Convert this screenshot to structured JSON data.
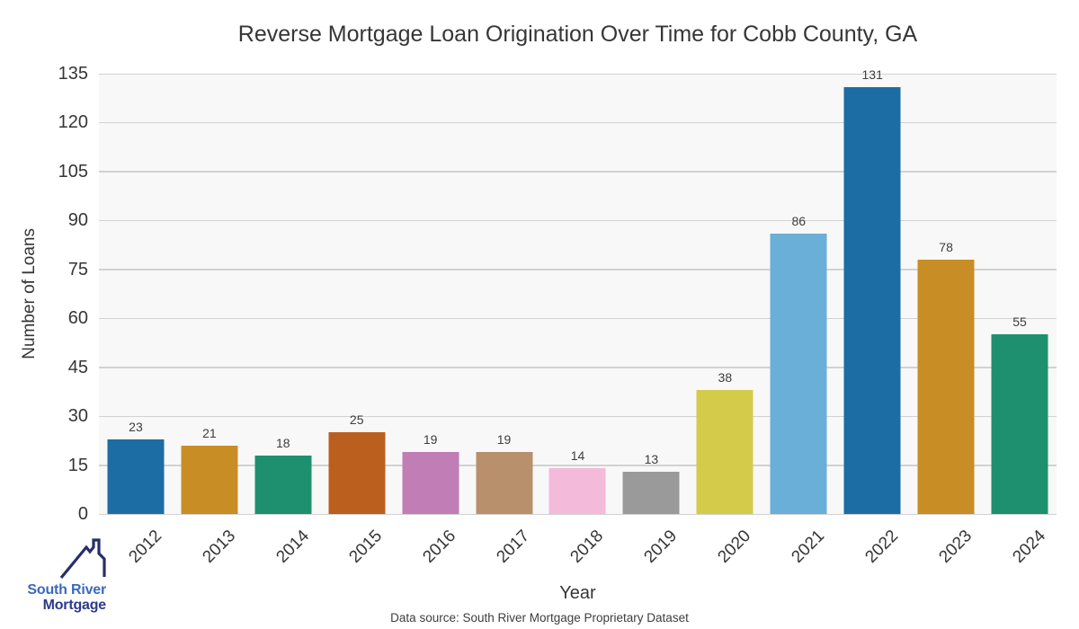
{
  "chart_data": {
    "type": "bar",
    "title": "Reverse Mortgage Loan Origination Over Time for Cobb County, GA",
    "xlabel": "Year",
    "ylabel": "Number of Loans",
    "categories": [
      "2012",
      "2013",
      "2014",
      "2015",
      "2016",
      "2017",
      "2018",
      "2019",
      "2020",
      "2021",
      "2022",
      "2023",
      "2024"
    ],
    "values": [
      23,
      21,
      18,
      25,
      19,
      19,
      14,
      13,
      38,
      86,
      131,
      78,
      55
    ],
    "bar_colors": [
      "#1c6da4",
      "#c88e25",
      "#1e9070",
      "#bb5f1e",
      "#c07db6",
      "#b8906c",
      "#f3bada",
      "#9a9a9a",
      "#d4cb4b",
      "#69afd7",
      "#1c6da4",
      "#c88e25",
      "#1e9070"
    ],
    "ylim": [
      0,
      135
    ],
    "yticks": [
      0,
      15,
      30,
      45,
      60,
      75,
      90,
      105,
      120,
      135
    ],
    "grid": "horizontal",
    "legend": "none",
    "value_labels_shown": true,
    "plot_background": "#f8f8f8",
    "grid_color": "#d2d2d2",
    "text_color": "#363636"
  },
  "footer": {
    "text": "Data source: South River Mortgage Proprietary Dataset"
  },
  "logo": {
    "line1": "South River",
    "line2": "Mortgage",
    "line1_color": "#3a6abd",
    "line2_color": "#2d3a8d",
    "roof_color": "#272e68"
  }
}
